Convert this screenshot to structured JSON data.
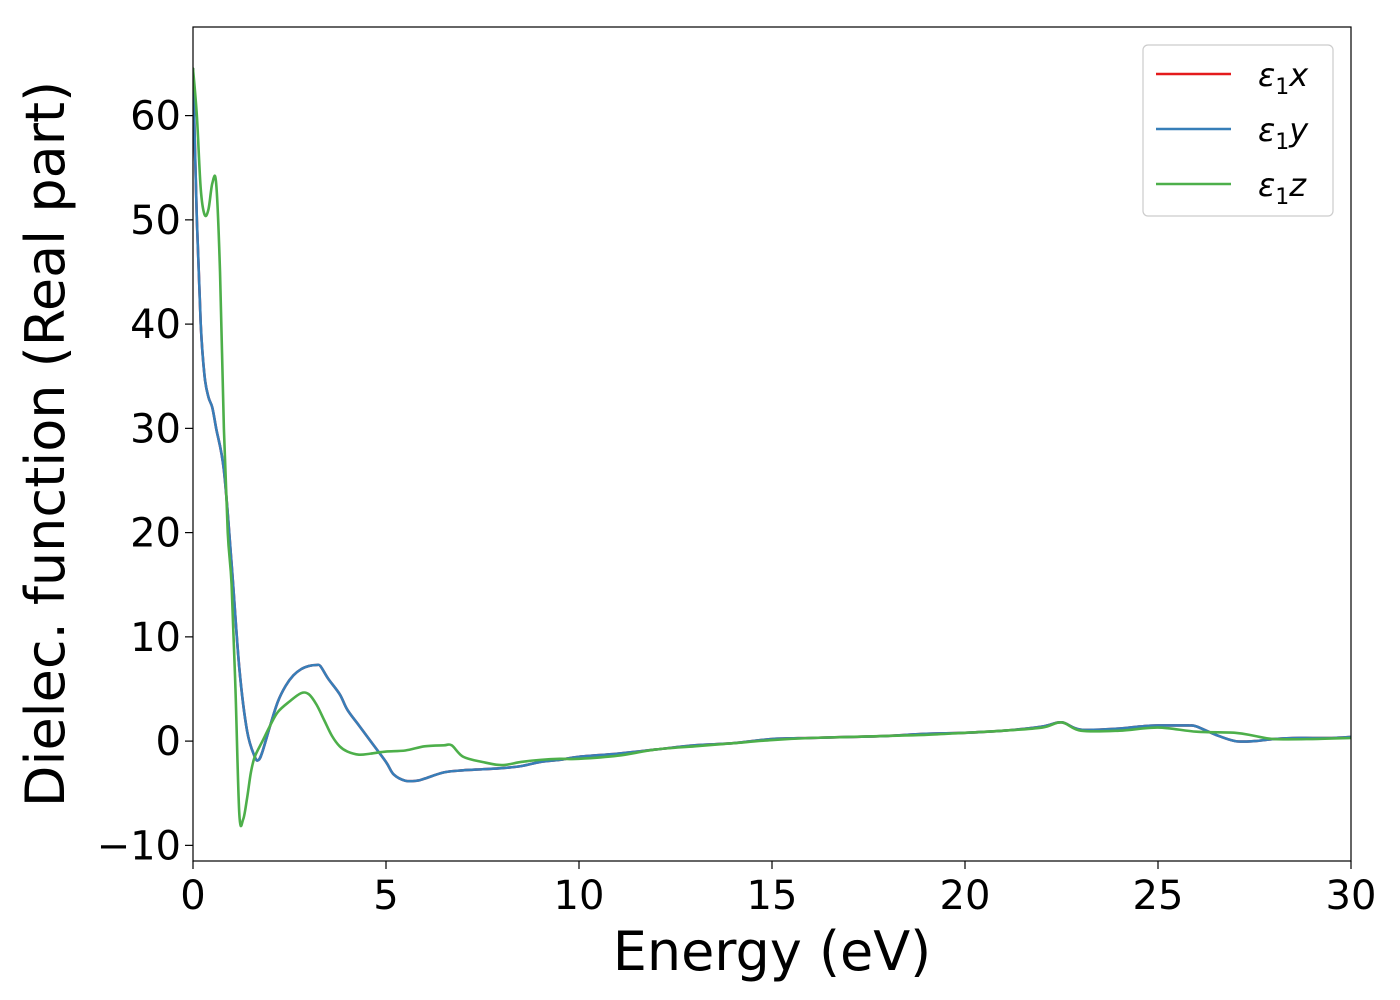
{
  "chart_data": {
    "type": "line",
    "xlabel": "Energy (eV)",
    "ylabel": "Dielec. function (Real part)",
    "xlim": [
      0,
      30
    ],
    "ylim": [
      -11.5,
      68.5
    ],
    "x_ticks": [
      "0",
      "5",
      "10",
      "15",
      "20",
      "25",
      "30"
    ],
    "x_tick_values": [
      0,
      5,
      10,
      15,
      20,
      25,
      30
    ],
    "y_ticks": [
      "−10",
      "0",
      "10",
      "20",
      "30",
      "40",
      "50",
      "60"
    ],
    "y_tick_values": [
      -10,
      0,
      10,
      20,
      30,
      40,
      50,
      60
    ],
    "grid": false,
    "legend_position": "top-right",
    "series": [
      {
        "name": "ε₁x",
        "legend_base": "ε",
        "legend_sub": "1",
        "legend_var": "x",
        "color": "#e41a1c",
        "x": [
          0.0,
          0.1,
          0.2,
          0.3,
          0.4,
          0.5,
          0.6,
          0.8,
          1.0,
          1.2,
          1.4,
          1.6,
          1.7,
          1.8,
          2.0,
          2.2,
          2.4,
          2.6,
          2.8,
          3.0,
          3.2,
          3.3,
          3.5,
          3.8,
          4.0,
          4.3,
          4.6,
          5.0,
          5.2,
          5.5,
          5.8,
          6.0,
          6.5,
          7.0,
          7.5,
          8.0,
          8.5,
          9.0,
          9.5,
          10.0,
          11.0,
          12.0,
          13.0,
          14.0,
          15.0,
          16.0,
          17.0,
          18.0,
          19.0,
          20.0,
          21.0,
          22.0,
          22.5,
          23.0,
          24.0,
          24.5,
          25.0,
          25.5,
          25.8,
          26.0,
          26.5,
          27.0,
          27.5,
          28.0,
          28.5,
          29.0,
          29.5,
          30.0
        ],
        "y": [
          64.5,
          50.0,
          40.0,
          35.0,
          33.0,
          32.0,
          30.0,
          26.0,
          17.0,
          7.0,
          1.0,
          -1.5,
          -1.8,
          -1.0,
          1.5,
          3.8,
          5.3,
          6.3,
          6.9,
          7.2,
          7.3,
          7.2,
          6.0,
          4.5,
          3.0,
          1.5,
          0.0,
          -2.0,
          -3.2,
          -3.8,
          -3.8,
          -3.6,
          -3.0,
          -2.8,
          -2.7,
          -2.6,
          -2.4,
          -2.0,
          -1.8,
          -1.5,
          -1.2,
          -0.8,
          -0.4,
          -0.2,
          0.2,
          0.3,
          0.4,
          0.5,
          0.7,
          0.8,
          1.0,
          1.4,
          1.8,
          1.1,
          1.2,
          1.4,
          1.5,
          1.5,
          1.5,
          1.4,
          0.6,
          0.0,
          0.0,
          0.2,
          0.3,
          0.3,
          0.3,
          0.4
        ]
      },
      {
        "name": "ε₁y",
        "legend_base": "ε",
        "legend_sub": "1",
        "legend_var": "y",
        "color": "#377eb8",
        "x": [
          0.0,
          0.1,
          0.2,
          0.3,
          0.4,
          0.5,
          0.6,
          0.8,
          1.0,
          1.2,
          1.4,
          1.6,
          1.7,
          1.8,
          2.0,
          2.2,
          2.4,
          2.6,
          2.8,
          3.0,
          3.2,
          3.3,
          3.5,
          3.8,
          4.0,
          4.3,
          4.6,
          5.0,
          5.2,
          5.5,
          5.8,
          6.0,
          6.5,
          7.0,
          7.5,
          8.0,
          8.5,
          9.0,
          9.5,
          10.0,
          11.0,
          12.0,
          13.0,
          14.0,
          15.0,
          16.0,
          17.0,
          18.0,
          19.0,
          20.0,
          21.0,
          22.0,
          22.5,
          23.0,
          24.0,
          24.5,
          25.0,
          25.5,
          25.8,
          26.0,
          26.5,
          27.0,
          27.5,
          28.0,
          28.5,
          29.0,
          29.5,
          30.0
        ],
        "y": [
          64.5,
          50.0,
          40.0,
          35.0,
          33.0,
          32.0,
          30.0,
          26.0,
          17.0,
          7.0,
          1.0,
          -1.5,
          -1.8,
          -1.0,
          1.5,
          3.8,
          5.3,
          6.3,
          6.9,
          7.2,
          7.3,
          7.2,
          6.0,
          4.5,
          3.0,
          1.5,
          0.0,
          -2.0,
          -3.2,
          -3.8,
          -3.8,
          -3.6,
          -3.0,
          -2.8,
          -2.7,
          -2.6,
          -2.4,
          -2.0,
          -1.8,
          -1.5,
          -1.2,
          -0.8,
          -0.4,
          -0.2,
          0.2,
          0.3,
          0.4,
          0.5,
          0.7,
          0.8,
          1.0,
          1.4,
          1.8,
          1.1,
          1.2,
          1.4,
          1.5,
          1.5,
          1.5,
          1.4,
          0.6,
          0.0,
          0.0,
          0.2,
          0.3,
          0.3,
          0.3,
          0.4
        ]
      },
      {
        "name": "ε₁z",
        "legend_base": "ε",
        "legend_sub": "1",
        "legend_var": "z",
        "color": "#4daf4a",
        "x": [
          0.0,
          0.1,
          0.2,
          0.3,
          0.4,
          0.5,
          0.6,
          0.7,
          0.8,
          0.9,
          1.0,
          1.1,
          1.2,
          1.3,
          1.4,
          1.5,
          1.6,
          1.8,
          2.0,
          2.2,
          2.5,
          2.8,
          3.0,
          3.2,
          3.4,
          3.6,
          3.8,
          4.0,
          4.3,
          4.6,
          5.0,
          5.5,
          6.0,
          6.5,
          6.7,
          7.0,
          7.5,
          8.0,
          8.5,
          9.0,
          9.5,
          10.0,
          11.0,
          12.0,
          13.0,
          14.0,
          15.0,
          16.0,
          17.0,
          18.0,
          19.0,
          20.0,
          21.0,
          22.0,
          22.5,
          23.0,
          24.0,
          25.0,
          26.0,
          27.0,
          27.5,
          28.0,
          29.0,
          30.0
        ],
        "y": [
          64.5,
          60.0,
          53.0,
          50.5,
          51.0,
          53.5,
          53.5,
          45.0,
          30.0,
          20.0,
          15.0,
          5.0,
          -7.0,
          -7.5,
          -5.5,
          -3.0,
          -1.5,
          0.0,
          1.5,
          2.8,
          3.8,
          4.6,
          4.5,
          3.5,
          2.0,
          0.5,
          -0.5,
          -1.0,
          -1.3,
          -1.2,
          -1.0,
          -0.9,
          -0.5,
          -0.4,
          -0.4,
          -1.5,
          -2.0,
          -2.3,
          -2.0,
          -1.8,
          -1.7,
          -1.7,
          -1.4,
          -0.8,
          -0.5,
          -0.2,
          0.1,
          0.3,
          0.4,
          0.5,
          0.6,
          0.8,
          1.0,
          1.3,
          1.8,
          1.0,
          1.0,
          1.3,
          0.9,
          0.8,
          0.5,
          0.2,
          0.2,
          0.3
        ]
      }
    ]
  }
}
